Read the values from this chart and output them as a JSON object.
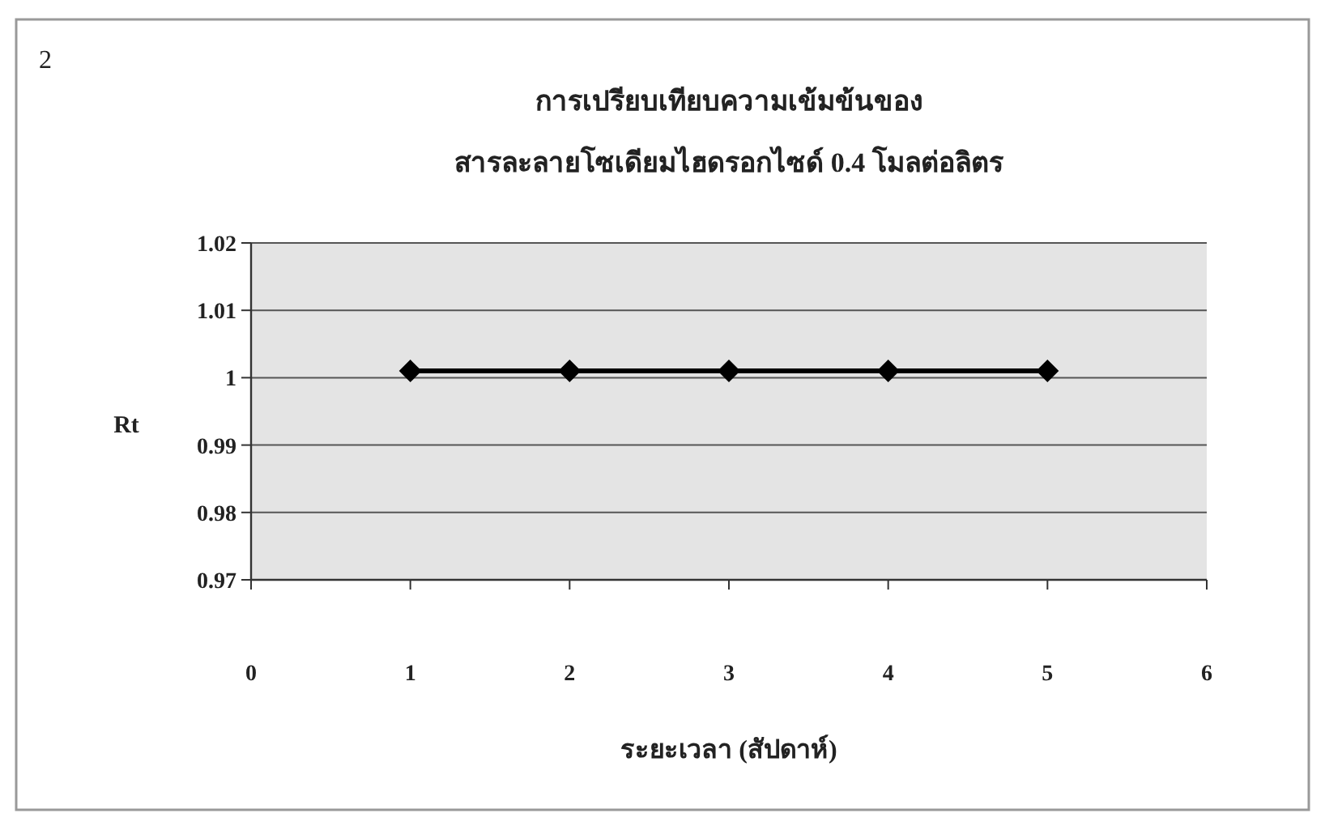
{
  "chart_data": {
    "type": "line",
    "title": "การเปรียบเทียบความเข้มข้นของ\nสารละลายโซเดียมไฮดรอกไซด์ 0.4 โมลต่อลิตร",
    "xlabel": "ระยะเวลา (สัปดาห์)",
    "ylabel": "Rt",
    "annotations": [
      "2"
    ],
    "x": [
      1,
      2,
      3,
      4,
      5
    ],
    "series": [
      {
        "color": "#000000",
        "values": [
          1.001,
          1.001,
          1.001,
          1.001,
          1.001
        ]
      }
    ],
    "xlim": [
      0,
      6
    ],
    "xticks": [
      0,
      1,
      2,
      3,
      4,
      5,
      6
    ],
    "ylim": [
      0.97,
      1.02
    ],
    "yticks": [
      0.97,
      0.98,
      0.99,
      1,
      1.01,
      1.02
    ],
    "grid": "y",
    "marker": "diamond",
    "line_style": "solid"
  }
}
